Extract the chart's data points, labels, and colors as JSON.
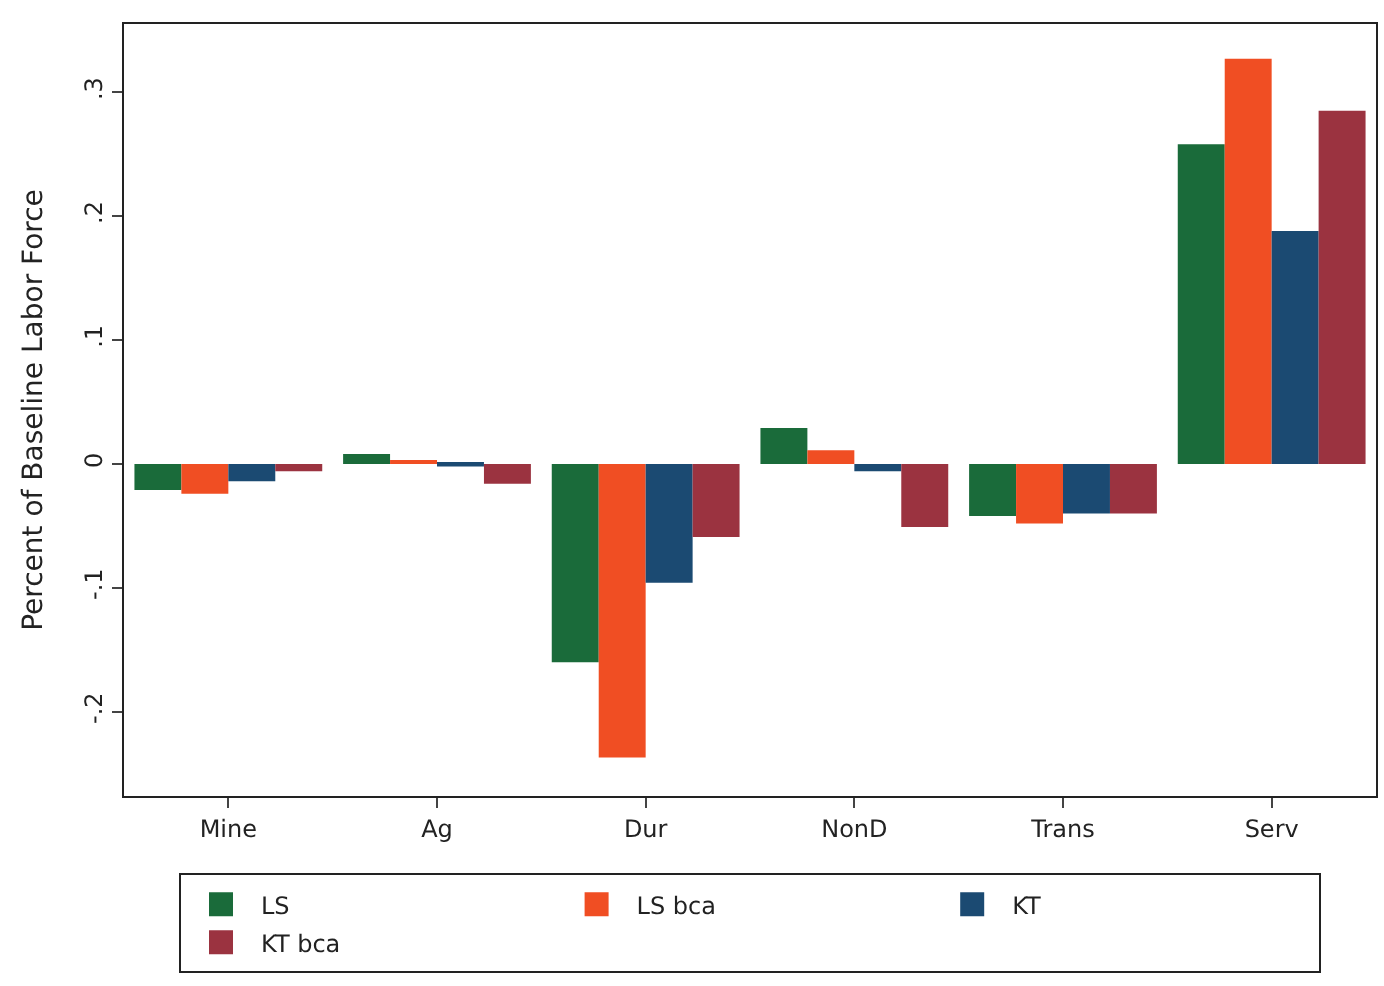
{
  "chart_data": {
    "type": "bar",
    "ylabel": "Percent of Baseline Labor Force",
    "categories": [
      "Mine",
      "Ag",
      "Dur",
      "NonD",
      "Trans",
      "Serv"
    ],
    "series": [
      {
        "name": "LS",
        "color": "#1a6b3a",
        "values": [
          -0.021,
          0.008,
          -0.16,
          0.029,
          -0.042,
          0.258
        ]
      },
      {
        "name": "LS bca",
        "color": "#f04e23",
        "values": [
          -0.024,
          0.003,
          -0.237,
          0.011,
          -0.048,
          0.327
        ]
      },
      {
        "name": "KT",
        "color": "#1b4a72",
        "values": [
          -0.014,
          -0.002,
          -0.096,
          -0.006,
          -0.04,
          0.188
        ]
      },
      {
        "name": "KT bca",
        "color": "#9b3340",
        "values": [
          -0.006,
          -0.016,
          -0.059,
          -0.051,
          -0.04,
          0.285
        ]
      }
    ],
    "ylim": [
      -0.268,
      0.355
    ],
    "yticks": [
      {
        "value": -0.2,
        "label": "-.2"
      },
      {
        "value": -0.1,
        "label": "-.1"
      },
      {
        "value": 0,
        "label": "0"
      },
      {
        "value": 0.1,
        "label": ".1"
      },
      {
        "value": 0.2,
        "label": ".2"
      },
      {
        "value": 0.3,
        "label": ".3"
      }
    ],
    "legend": "bottom"
  }
}
